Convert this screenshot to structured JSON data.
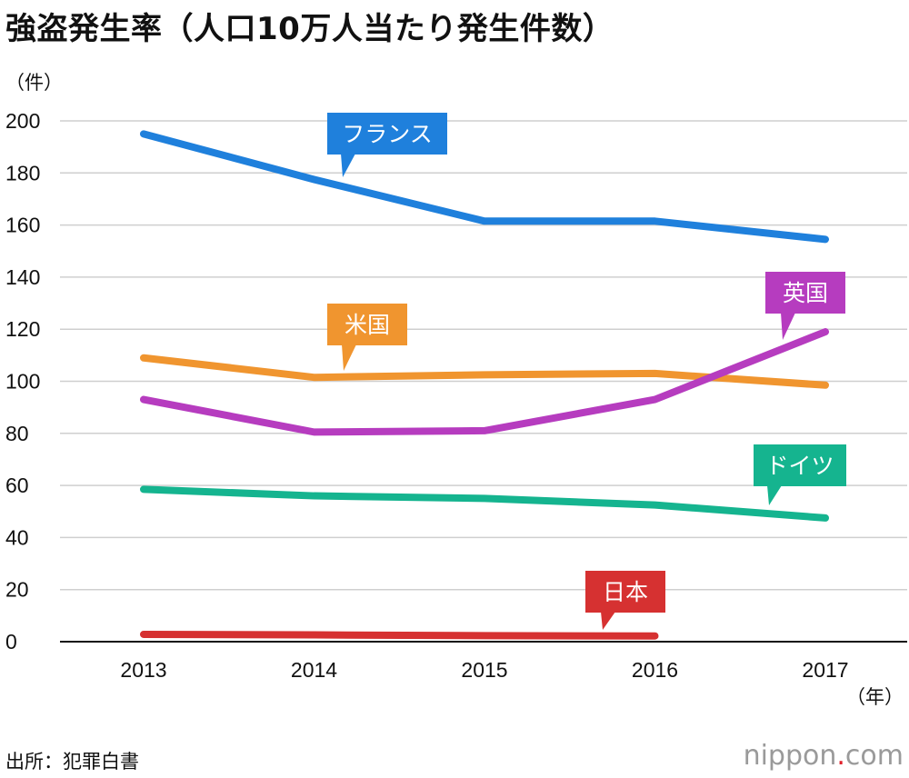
{
  "title": "強盗発生率（人口10万人当たり発生件数）",
  "source": "出所：犯罪白書",
  "brand": {
    "prefix": "nippon",
    "dot": ".",
    "suffix": "com"
  },
  "chart_data": {
    "type": "line",
    "title": "強盗発生率（人口10万人当たり発生件数）",
    "y_unit": "（件）",
    "x_unit": "（年）",
    "x": [
      "2013",
      "2014",
      "2015",
      "2016",
      "2017"
    ],
    "yticks": [
      0,
      20,
      40,
      60,
      80,
      100,
      120,
      140,
      160,
      180,
      200
    ],
    "ylim": [
      0,
      200
    ],
    "grid": true,
    "legend": "inline callouts",
    "series": [
      {
        "name": "フランス",
        "color": "#1f80dc",
        "values": [
          195,
          177.5,
          161.5,
          161.5,
          154.5
        ]
      },
      {
        "name": "米国",
        "color": "#f0952f",
        "values": [
          109,
          101.5,
          102.5,
          103,
          98.5
        ]
      },
      {
        "name": "英国",
        "color": "#b63cbf",
        "values": [
          93,
          80.5,
          81,
          93,
          119
        ]
      },
      {
        "name": "ドイツ",
        "color": "#15b48f",
        "values": [
          58.5,
          56,
          55,
          52.5,
          47.5
        ]
      },
      {
        "name": "日本",
        "color": "#d63131",
        "values": [
          2.8,
          2.6,
          2.3,
          2.2,
          null
        ]
      }
    ]
  }
}
